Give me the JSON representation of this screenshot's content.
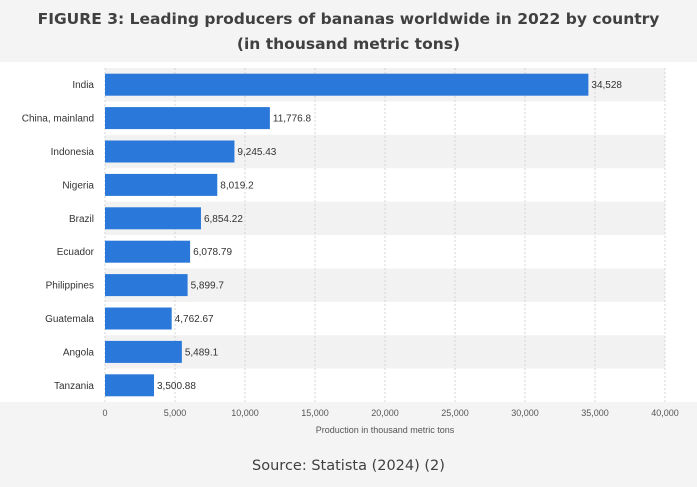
{
  "chart_data": {
    "type": "bar",
    "orientation": "horizontal",
    "title_line1": "FIGURE 3: Leading producers of bananas worldwide in 2022 by country",
    "title_line2": "(in thousand metric tons)",
    "categories": [
      "India",
      "China, mainland",
      "Indonesia",
      "Nigeria",
      "Brazil",
      "Ecuador",
      "Philippines",
      "Guatemala",
      "Angola",
      "Tanzania"
    ],
    "values": [
      34528,
      11776.8,
      9245.43,
      8019.2,
      6854.22,
      6078.79,
      5899.7,
      4762.67,
      5489.1,
      3500.88
    ],
    "value_labels": [
      "34,528",
      "11,776.8",
      "9,245.43",
      "8,019.2",
      "6,854.22",
      "6,078.79",
      "5,899.7",
      "4,762.67",
      "5,489.1",
      "3,500.88"
    ],
    "xlabel": "Production in thousand metric tons",
    "xlim": [
      0,
      40000
    ],
    "xticks": [
      0,
      5000,
      10000,
      15000,
      20000,
      25000,
      30000,
      35000,
      40000
    ],
    "xtick_labels": [
      "0",
      "5,000",
      "10,000",
      "15,000",
      "20,000",
      "25,000",
      "30,000",
      "35,000",
      "40,000"
    ],
    "grid": true,
    "bar_color": "#2a78d9"
  },
  "source": "Source: Statista (2024) (2)"
}
